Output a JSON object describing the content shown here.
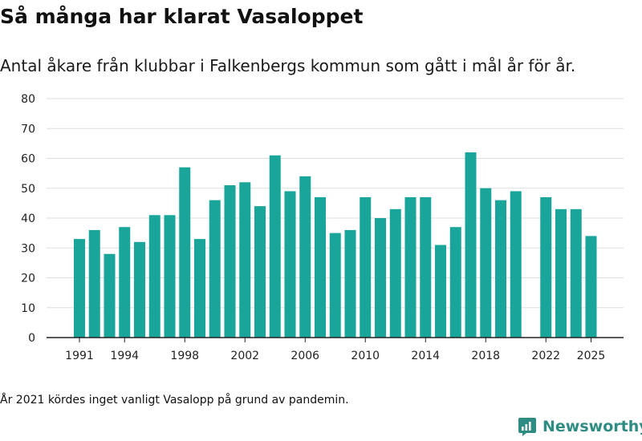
{
  "title": "Så många har klarat Vasaloppet",
  "subtitle": "Antal åkare från klubbar i Falkenbergs kommun som gått i mål år för år.",
  "footnote": "År 2021 kördes inget vanligt Vasalopp på grund av pandemin.",
  "brand": {
    "name": "Newsworthy",
    "icon": "newsworthy-logo-icon"
  },
  "colors": {
    "bar": "#1aa59a",
    "grid": "#dddddd",
    "axis": "#222222",
    "brand": "#2e8c83"
  },
  "chart_data": {
    "type": "bar",
    "title": "Så många har klarat Vasaloppet",
    "xlabel": "",
    "ylabel": "",
    "ylim": [
      0,
      80
    ],
    "yticks": [
      0,
      10,
      20,
      30,
      40,
      50,
      60,
      70,
      80
    ],
    "xticks": [
      1991,
      1994,
      1998,
      2002,
      2006,
      2010,
      2014,
      2018,
      2022,
      2025
    ],
    "grid": true,
    "categories": [
      1991,
      1992,
      1993,
      1994,
      1995,
      1996,
      1997,
      1998,
      1999,
      2000,
      2001,
      2002,
      2003,
      2004,
      2005,
      2006,
      2007,
      2008,
      2009,
      2010,
      2011,
      2012,
      2013,
      2014,
      2015,
      2016,
      2017,
      2018,
      2019,
      2020,
      2021,
      2022,
      2023,
      2024,
      2025
    ],
    "values": [
      33,
      36,
      28,
      37,
      32,
      41,
      41,
      57,
      33,
      46,
      51,
      52,
      44,
      61,
      49,
      54,
      47,
      35,
      36,
      47,
      40,
      43,
      47,
      47,
      31,
      37,
      62,
      50,
      46,
      49,
      null,
      47,
      43,
      43,
      34
    ]
  }
}
